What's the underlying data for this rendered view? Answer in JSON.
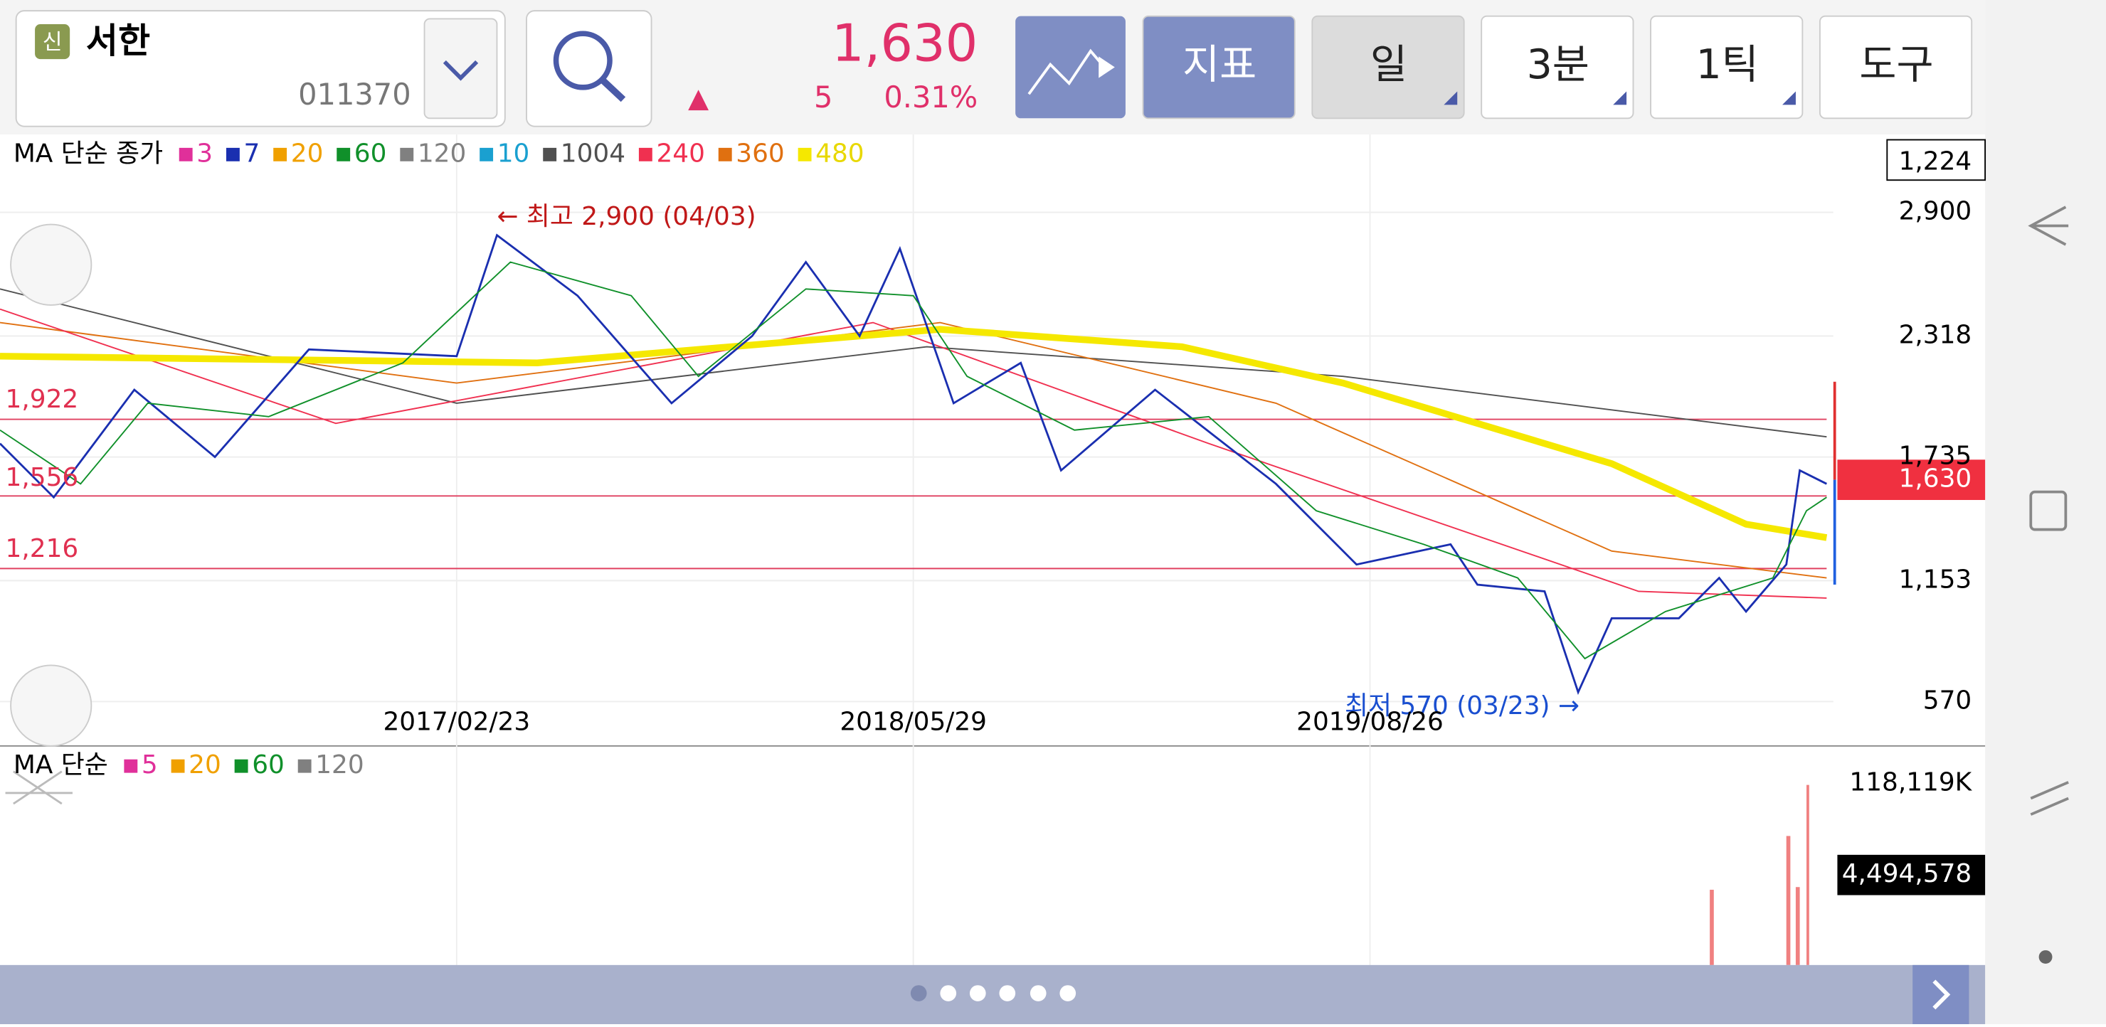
{
  "header": {
    "badge": "신",
    "name": "서한",
    "code": "011370",
    "price": "1,630",
    "arrow": "▲",
    "change": "5",
    "change_pct": "0.31%",
    "buttons": [
      "지표",
      "일",
      "3분",
      "1틱",
      "도구"
    ]
  },
  "ma_legend": {
    "label": "MA 단순 종가",
    "items": [
      {
        "name": "3",
        "color": "#e0309a"
      },
      {
        "name": "7",
        "color": "#1a2fb0"
      },
      {
        "name": "20",
        "color": "#f0a000"
      },
      {
        "name": "60",
        "color": "#10902a"
      },
      {
        "name": "120",
        "color": "#808080"
      },
      {
        "name": "10",
        "color": "#1aa0d0"
      },
      {
        "name": "1004",
        "color": "#505050"
      },
      {
        "name": "240",
        "color": "#f03050"
      },
      {
        "name": "360",
        "color": "#e07010"
      },
      {
        "name": "480",
        "color": "#f5e800"
      }
    ]
  },
  "price_axis": {
    "top_box": "1,224",
    "labels": [
      "2,900",
      "2,318",
      "1,735",
      "1,153",
      "570"
    ],
    "current": "1,630"
  },
  "levels": [
    "1,922",
    "1,556",
    "1,216"
  ],
  "annotations": {
    "high": "← 최고 2,900 (04/03)",
    "low": "최저 570 (03/23) →"
  },
  "dates": [
    "2017/02/23",
    "2018/05/29",
    "2019/08/26"
  ],
  "volume_legend": {
    "label": "MA 단순",
    "items": [
      {
        "name": "5",
        "color": "#e0309a"
      },
      {
        "name": "20",
        "color": "#f0a000"
      },
      {
        "name": "60",
        "color": "#10902a"
      },
      {
        "name": "120",
        "color": "#808080"
      }
    ]
  },
  "volume_axis": {
    "max": "118,119K",
    "current": "4,494,578"
  }
}
